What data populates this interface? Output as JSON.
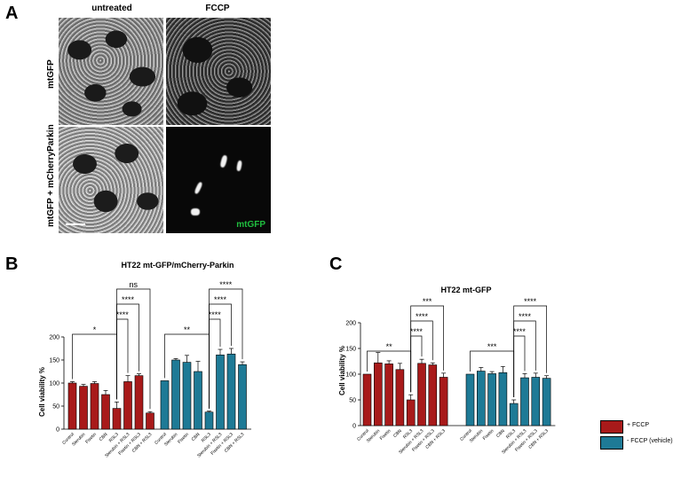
{
  "panels": {
    "a_label": "A",
    "b_label": "B",
    "c_label": "C"
  },
  "microscopy": {
    "col_untreated": "untreated",
    "col_fccp": "FCCP",
    "row_mtgfp": "mtGFP",
    "row_mtgfp_parkin": "mtGFP + mCherryParkin",
    "channel_label": "mtGFP",
    "channel_label_color": "#1fbf3f"
  },
  "legend": {
    "fccp_label": "+ FCCP",
    "fccp_color": "#a81a1a",
    "vehicle_label": "- FCCP (vehicle)",
    "vehicle_color": "#1e7a96"
  },
  "chart_data": [
    {
      "id": "B",
      "type": "bar",
      "title": "HT22 mt-GFP/mCherry-Parkin",
      "ylabel": "Cell viability %",
      "ylim": [
        0,
        200
      ],
      "yticks": [
        0,
        50,
        100,
        150,
        200
      ],
      "grid": false,
      "series": [
        {
          "color": "#a81a1a",
          "categories": [
            "Control",
            "Sterubin",
            "Fisetin",
            "CBN",
            "RSL3",
            "Sterubin + RSL3",
            "Fisetin + RSL3",
            "CBN + RSL3"
          ],
          "values": [
            100,
            93,
            99,
            75,
            45,
            103,
            116,
            35
          ],
          "errors": [
            3,
            4,
            4,
            9,
            14,
            13,
            4,
            3
          ]
        },
        {
          "color": "#1e7a96",
          "categories": [
            "Control",
            "Sterubin",
            "Fisetin",
            "CBN",
            "RSL3",
            "Sterubin + RSL3",
            "Fisetin + RSL3",
            "CBN + RSL3"
          ],
          "values": [
            105,
            150,
            145,
            125,
            37,
            161,
            163,
            140
          ],
          "errors": [
            0,
            3,
            15,
            22,
            2,
            12,
            12,
            6
          ]
        }
      ],
      "annotations": [
        {
          "text": "*",
          "series": 0,
          "from": 0,
          "to": 4
        },
        {
          "text": "****",
          "series": 0,
          "from": 4,
          "to": 5
        },
        {
          "text": "****",
          "series": 0,
          "from": 4,
          "to": 6
        },
        {
          "text": "ns",
          "series": 0,
          "from": 4,
          "to": 7
        },
        {
          "text": "**",
          "series": 1,
          "from": 0,
          "to": 4
        },
        {
          "text": "****",
          "series": 1,
          "from": 4,
          "to": 5
        },
        {
          "text": "****",
          "series": 1,
          "from": 4,
          "to": 6
        },
        {
          "text": "****",
          "series": 1,
          "from": 4,
          "to": 7
        }
      ]
    },
    {
      "id": "C",
      "type": "bar",
      "title": "HT22 mt-GFP",
      "ylabel": "Cell viability %",
      "ylim": [
        0,
        200
      ],
      "yticks": [
        0,
        50,
        100,
        150,
        200
      ],
      "grid": false,
      "series": [
        {
          "color": "#a81a1a",
          "categories": [
            "Control",
            "Sterubin",
            "Fisetin",
            "CBN",
            "RSL3",
            "Sterubin + RSL3",
            "Fisetin + RSL3",
            "CBN + RSL3"
          ],
          "values": [
            100,
            122,
            120,
            109,
            50,
            121,
            118,
            94
          ],
          "errors": [
            0,
            20,
            6,
            12,
            10,
            8,
            4,
            8
          ]
        },
        {
          "color": "#1e7a96",
          "categories": [
            "Control",
            "Sterubin",
            "Fisetin",
            "CBN",
            "RSL3",
            "Sterubin + RSL3",
            "Fisetin + RSL3",
            "CBN + RSL3"
          ],
          "values": [
            100,
            106,
            101,
            103,
            43,
            93,
            94,
            92
          ],
          "errors": [
            0,
            7,
            4,
            12,
            7,
            8,
            8,
            5
          ]
        }
      ],
      "annotations": [
        {
          "text": "**",
          "series": 0,
          "from": 0,
          "to": 4
        },
        {
          "text": "****",
          "series": 0,
          "from": 4,
          "to": 5
        },
        {
          "text": "****",
          "series": 0,
          "from": 4,
          "to": 6
        },
        {
          "text": "***",
          "series": 0,
          "from": 4,
          "to": 7
        },
        {
          "text": "***",
          "series": 1,
          "from": 0,
          "to": 4
        },
        {
          "text": "****",
          "series": 1,
          "from": 4,
          "to": 5
        },
        {
          "text": "****",
          "series": 1,
          "from": 4,
          "to": 6
        },
        {
          "text": "****",
          "series": 1,
          "from": 4,
          "to": 7
        }
      ]
    }
  ]
}
